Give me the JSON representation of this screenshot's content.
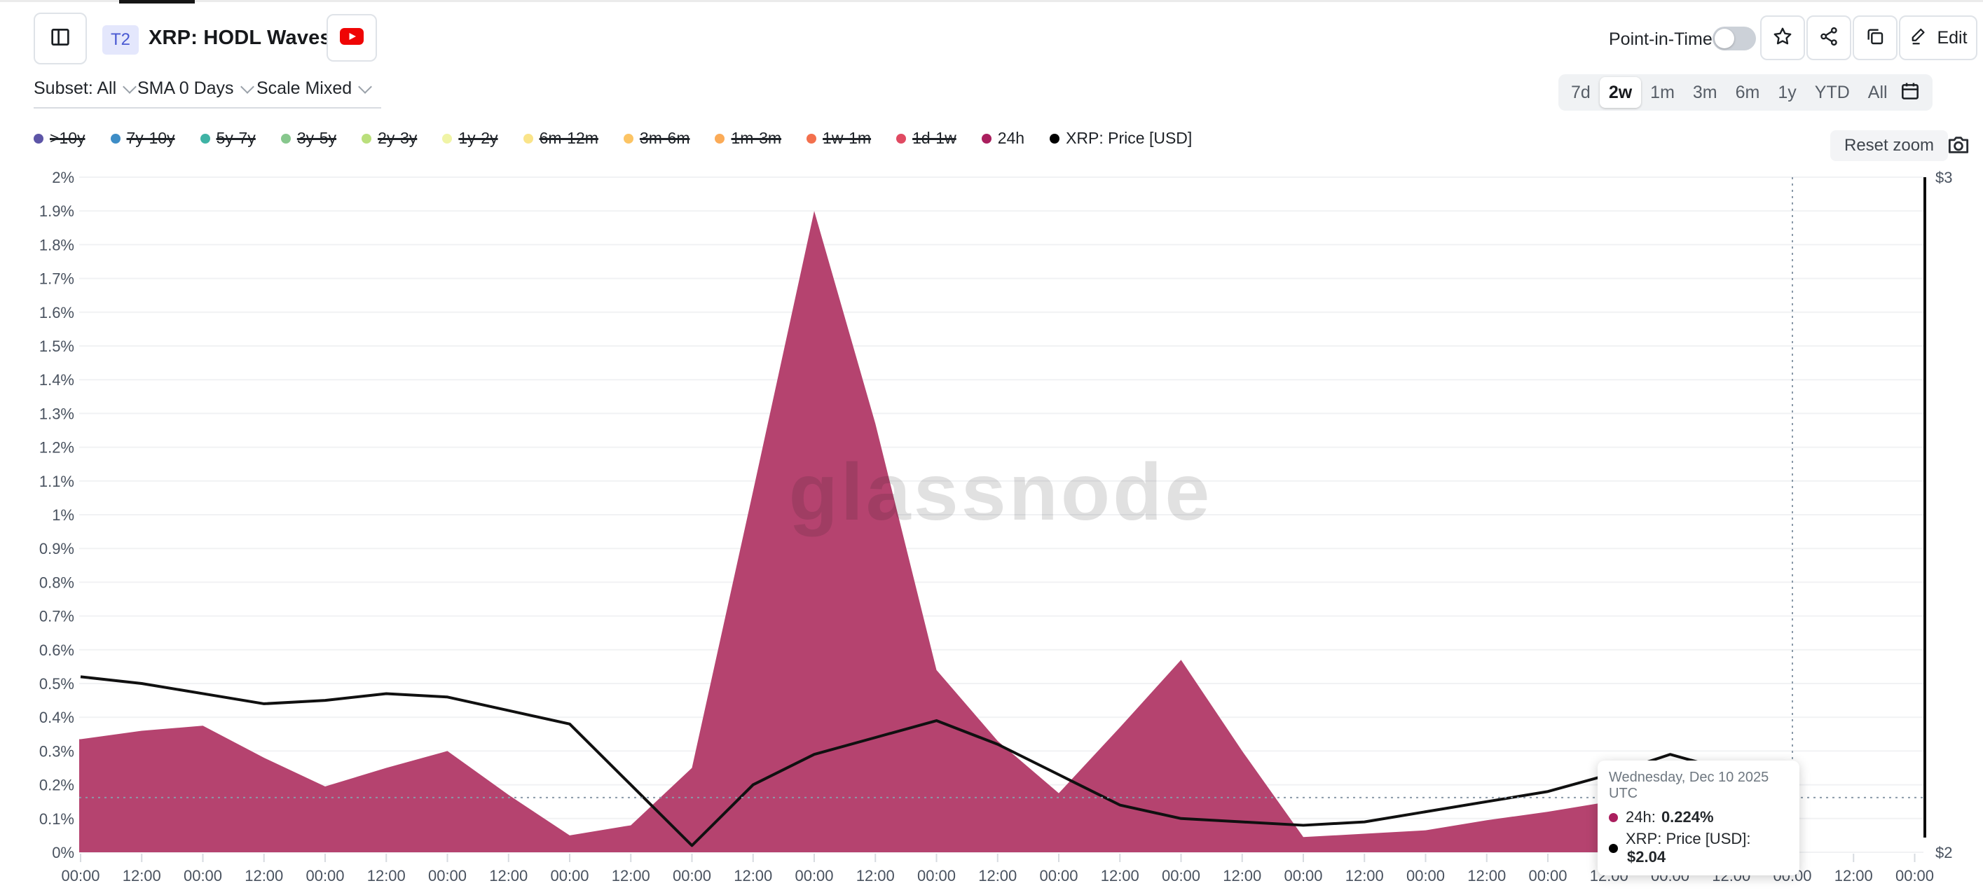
{
  "header": {
    "badge": "T2",
    "title": "XRP: HODL Waves",
    "point_in_time_label": "Point-in-Time",
    "edit_label": "Edit"
  },
  "controls": {
    "subset": "Subset: All",
    "sma": "SMA 0 Days",
    "scale": "Scale Mixed",
    "ranges": [
      "7d",
      "2w",
      "1m",
      "3m",
      "6m",
      "1y",
      "YTD",
      "All"
    ],
    "selected_range": "2w",
    "reset_zoom_label": "Reset zoom"
  },
  "legend": {
    "items": [
      {
        "label": ">10y",
        "color": "#5d55a7",
        "active": false
      },
      {
        "label": "7y-10y",
        "color": "#3e8dc6",
        "active": false
      },
      {
        "label": "5y-7y",
        "color": "#3fb3a5",
        "active": false
      },
      {
        "label": "3y-5y",
        "color": "#87c78d",
        "active": false
      },
      {
        "label": "2y-3y",
        "color": "#badf7c",
        "active": false
      },
      {
        "label": "1y-2y",
        "color": "#f0f4a6",
        "active": false
      },
      {
        "label": "6m-12m",
        "color": "#fae489",
        "active": false
      },
      {
        "label": "3m-6m",
        "color": "#fcc464",
        "active": false
      },
      {
        "label": "1m-3m",
        "color": "#fbab57",
        "active": false
      },
      {
        "label": "1w-1m",
        "color": "#f3704d",
        "active": false
      },
      {
        "label": "1d-1w",
        "color": "#e04a62",
        "active": false
      },
      {
        "label": "24h",
        "color": "#aa1f5e",
        "active": true
      },
      {
        "label": "XRP: Price [USD]",
        "color": "#000000",
        "active": true
      }
    ]
  },
  "tooltip": {
    "title": "Wednesday, Dec 10 2025 UTC",
    "rows": [
      {
        "label": "24h:",
        "value": "0.224%",
        "color": "#aa1f5e"
      },
      {
        "label": "XRP: Price [USD]:",
        "value": "$2.04",
        "color": "#000000"
      }
    ]
  },
  "chart_data": {
    "type": "area",
    "title": "XRP: HODL Waves",
    "watermark": "glassnode",
    "y_left_unit": "%",
    "y_left_range": [
      0,
      2
    ],
    "y_left_tick_labels": [
      "2%",
      "1.9%",
      "1.8%",
      "1.7%",
      "1.6%",
      "1.5%",
      "1.4%",
      "1.3%",
      "1.2%",
      "1.1%",
      "1%",
      "0.9%",
      "0.8%",
      "0.7%",
      "0.6%",
      "0.5%",
      "0.4%",
      "0.3%",
      "0.2%",
      "0.1%",
      "0%"
    ],
    "y_right_unit": "USD",
    "y_right_range": [
      2,
      3
    ],
    "y_right_tick_labels": [
      "$3",
      "$2"
    ],
    "x_tick_labels": [
      "00:00",
      "12:00",
      "00:00",
      "12:00",
      "00:00",
      "12:00",
      "00:00",
      "12:00",
      "00:00",
      "12:00",
      "00:00",
      "12:00",
      "00:00",
      "12:00",
      "00:00",
      "12:00",
      "00:00",
      "12:00",
      "00:00",
      "12:00",
      "00:00",
      "12:00",
      "00:00",
      "12:00",
      "00:00",
      "12:00",
      "00:00",
      "12:00",
      "00:00",
      "12:00",
      "00:00"
    ],
    "series": [
      {
        "name": "24h",
        "type": "area",
        "axis": "left",
        "color": "#b5436f",
        "marker_color": "#aa1f5e",
        "unit": "%",
        "values": [
          0.335,
          0.36,
          0.375,
          0.28,
          0.195,
          0.25,
          0.3,
          0.17,
          0.05,
          0.08,
          0.25,
          1.07,
          1.9,
          1.27,
          0.54,
          0.33,
          0.175,
          0.37,
          0.57,
          0.3,
          0.045,
          0.055,
          0.065,
          0.095,
          0.12,
          0.15,
          0.165,
          0.19,
          0.224
        ]
      },
      {
        "name": "XRP: Price [USD]",
        "type": "line",
        "axis": "right",
        "color": "#101010",
        "marker_color": "#000000",
        "unit": "USD",
        "values": [
          2.26,
          2.25,
          2.235,
          2.22,
          2.225,
          2.235,
          2.23,
          2.21,
          2.19,
          2.1,
          2.01,
          2.1,
          2.145,
          2.17,
          2.195,
          2.16,
          2.115,
          2.07,
          2.05,
          2.045,
          2.04,
          2.045,
          2.06,
          2.075,
          2.09,
          2.115,
          2.145,
          2.12,
          2.04
        ]
      }
    ],
    "crosshair": {
      "x_index": 28,
      "y_percent": 0.162
    },
    "grid": true,
    "legend_position": "top-left"
  }
}
